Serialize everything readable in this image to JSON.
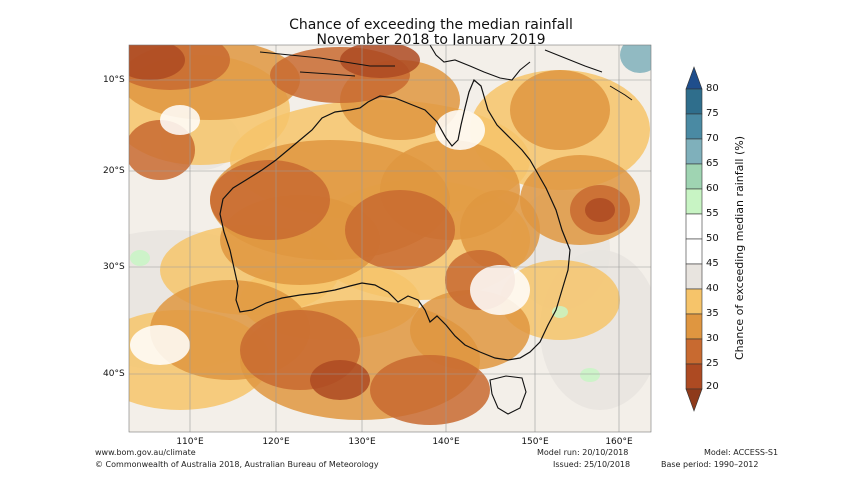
{
  "title_line1": "Chance of exceeding the median rainfall",
  "title_line2": "November 2018 to January 2019",
  "latitude_labels": [
    "10°S",
    "20°S",
    "30°S",
    "40°S"
  ],
  "longitude_labels": [
    "110°E",
    "120°E",
    "130°E",
    "140°E",
    "150°E",
    "160°E"
  ],
  "colorbar": {
    "title": "Chance of exceeding median rainfall (%)",
    "ticks": [
      "80",
      "75",
      "70",
      "65",
      "60",
      "55",
      "50",
      "45",
      "40",
      "35",
      "30",
      "25",
      "20"
    ],
    "colors": [
      "#2f6e8c",
      "#4a8aa3",
      "#7fb0bb",
      "#9fd4b2",
      "#c8f4c4",
      "#ffffff",
      "#ffffff",
      "#e8e4df",
      "#f6c46a",
      "#df9640",
      "#c86a30",
      "#ad4a22"
    ],
    "top_color": "#1f4e8c",
    "bottom_color": "#8e3a1a"
  },
  "map_colors": {
    "ocean_base": "#f3efe9",
    "light": "#e8e4df",
    "yellow": "#f6c46a",
    "orange": "#df9640",
    "dark_orange": "#c86a30",
    "brown": "#ad4a22",
    "green": "#c8f4c4",
    "teal": "#7fb0bb",
    "coast": "#111111",
    "grid": "#9a9a9a"
  },
  "footer": {
    "website": "www.bom.gov.au/climate",
    "copyright": "© Commonwealth of Australia 2018, Australian Bureau of Meteorology",
    "model_run": "Model run: 20/10/2018",
    "issued": "Issued: 25/10/2018",
    "model": "Model: ACCESS-S1",
    "base_period": "Base period: 1990–2012"
  }
}
